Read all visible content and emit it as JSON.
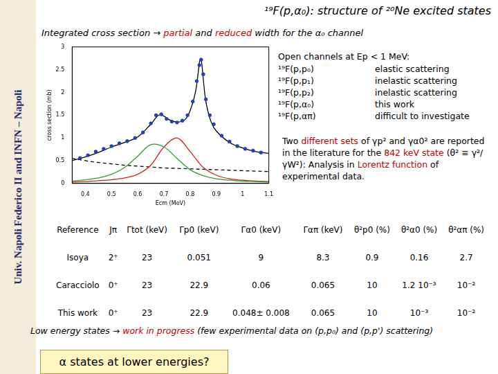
{
  "header": {
    "title": "¹⁹F(p,α₀): structure of ²⁰Ne excited states",
    "subtitle": [
      {
        "text": "Integrated cross section → "
      },
      {
        "text": "partial",
        "color": "#c00000"
      },
      {
        "text": " and "
      },
      {
        "text": "reduced",
        "color": "#c00000"
      },
      {
        "text": " width for the α₀ channel"
      }
    ]
  },
  "side_text": "Univ. Napoli Federico II and INFN – Napoli",
  "chart_data": {
    "type": "scatter",
    "xlabel": "Ecm (MeV)",
    "ylabel": "cross section (mb)",
    "xlim": [
      0.35,
      1.1
    ],
    "xticks": [
      0.4,
      0.5,
      0.6,
      0.7,
      0.8,
      0.9,
      1,
      1.1
    ],
    "ylim": [
      0,
      3
    ],
    "yticks": [
      0,
      0.5,
      1,
      1.5,
      2,
      2.5,
      3
    ],
    "grid": false,
    "series": [
      {
        "color": "#1f3fbf",
        "marker": "circle",
        "line_style": "none",
        "x": [
          0.38,
          0.41,
          0.44,
          0.47,
          0.5,
          0.53,
          0.56,
          0.59,
          0.62,
          0.65,
          0.67,
          0.69,
          0.71,
          0.73,
          0.75,
          0.77,
          0.79,
          0.81,
          0.825,
          0.835,
          0.842,
          0.85,
          0.86,
          0.875,
          0.89,
          0.92,
          0.95,
          0.98,
          1.01,
          1.04,
          1.07
        ],
        "values": [
          0.56,
          0.62,
          0.7,
          0.76,
          0.82,
          0.88,
          0.93,
          1.0,
          1.12,
          1.32,
          1.5,
          1.52,
          1.42,
          1.36,
          1.34,
          1.38,
          1.5,
          1.8,
          2.25,
          2.6,
          2.72,
          2.4,
          1.85,
          1.5,
          1.3,
          1.05,
          0.92,
          0.82,
          0.76,
          0.72,
          0.68
        ]
      },
      {
        "color": "#000000",
        "marker": "none",
        "line_style": "solid",
        "x": [
          0.35,
          0.4,
          0.45,
          0.5,
          0.55,
          0.6,
          0.65,
          0.68,
          0.7,
          0.72,
          0.75,
          0.78,
          0.8,
          0.82,
          0.83,
          0.835,
          0.84,
          0.845,
          0.85,
          0.86,
          0.88,
          0.9,
          0.95,
          1.0,
          1.05,
          1.1
        ],
        "values": [
          0.5,
          0.58,
          0.68,
          0.8,
          0.9,
          1.02,
          1.3,
          1.5,
          1.48,
          1.4,
          1.35,
          1.4,
          1.6,
          2.0,
          2.4,
          2.65,
          2.75,
          2.6,
          2.3,
          1.8,
          1.35,
          1.15,
          0.9,
          0.78,
          0.7,
          0.66
        ]
      },
      {
        "color": "#2e9e2e",
        "marker": "none",
        "line_style": "solid",
        "x": [
          0.35,
          0.4,
          0.45,
          0.5,
          0.55,
          0.6,
          0.65,
          0.7,
          0.75,
          0.8,
          0.85,
          0.9,
          0.95,
          1.0,
          1.05,
          1.1
        ],
        "values": [
          0.05,
          0.08,
          0.12,
          0.2,
          0.35,
          0.6,
          0.85,
          0.8,
          0.55,
          0.3,
          0.17,
          0.1,
          0.07,
          0.05,
          0.04,
          0.03
        ]
      },
      {
        "color": "#d42020",
        "marker": "none",
        "line_style": "solid",
        "x": [
          0.35,
          0.4,
          0.45,
          0.5,
          0.55,
          0.6,
          0.65,
          0.7,
          0.75,
          0.8,
          0.85,
          0.9,
          0.95,
          1.0,
          1.05,
          1.1
        ],
        "values": [
          0.03,
          0.04,
          0.06,
          0.08,
          0.12,
          0.2,
          0.4,
          0.8,
          1.0,
          0.7,
          0.35,
          0.18,
          0.1,
          0.07,
          0.05,
          0.04
        ]
      },
      {
        "color": "#000000",
        "marker": "none",
        "line_style": "dashed",
        "x": [
          0.35,
          0.4,
          0.45,
          0.5,
          0.55,
          0.6,
          0.65,
          0.7,
          0.75,
          0.8,
          0.85,
          0.9,
          0.95,
          1.0,
          1.05,
          1.1
        ],
        "values": [
          0.55,
          0.5,
          0.46,
          0.43,
          0.4,
          0.38,
          0.36,
          0.34,
          0.33,
          0.32,
          0.31,
          0.3,
          0.29,
          0.28,
          0.27,
          0.26
        ]
      }
    ]
  },
  "open_channels": {
    "title": "Open channels at Ep < 1 MeV:",
    "rows": [
      [
        "¹⁹F(p,p₀)",
        "elastic scattering"
      ],
      [
        "¹⁹F(p,p₁)",
        "inelastic scattering"
      ],
      [
        "¹⁹F(p,p₂)",
        "inelastic scattering"
      ],
      [
        "¹⁹F(p,α₀)",
        "this work"
      ],
      [
        "¹⁹F(p,απ)",
        "difficult to investigate"
      ]
    ]
  },
  "note": [
    {
      "text": "Two "
    },
    {
      "text": "different sets",
      "color": "#c00000"
    },
    {
      "text": " of γp² and γα0² are reported in the literature for the "
    },
    {
      "text": "842 keV state",
      "color": "#c00000"
    },
    {
      "text": " (θ² ≡ γ²/γW²): Analysis in "
    },
    {
      "text": "Lorentz function",
      "color": "#c00000"
    },
    {
      "text": " of experimental data."
    }
  ],
  "table": {
    "header": [
      "Reference",
      "Jπ",
      "Γtot (keV)",
      "Γp0 (keV)",
      "Γα0 (keV)",
      "Γαπ (keV)",
      "θ²p0 (%)",
      "θ²α0 (%)",
      "θ²απ (%)"
    ],
    "rows": [
      [
        "Isoya",
        "2⁺",
        "23",
        "0.051",
        "9",
        "8.3",
        "0.9",
        "0.16",
        "2.7"
      ],
      [
        "Caracciolo",
        "0⁺",
        "23",
        "22.9",
        "0.06",
        "0.065",
        "10",
        "1.2 10⁻³",
        "10⁻²"
      ],
      [
        "This work",
        "0⁺",
        "23",
        "22.9",
        "0.048± 0.008",
        "0.065",
        "10",
        "10⁻³",
        "10⁻²"
      ]
    ]
  },
  "footer": [
    {
      "text": "Low energy states → "
    },
    {
      "text": "work in progress",
      "color": "#c00000"
    },
    {
      "text": " (few experimental data on (p,p₀) and (p,p') scattering)"
    }
  ],
  "question": "α states at lower energies?"
}
